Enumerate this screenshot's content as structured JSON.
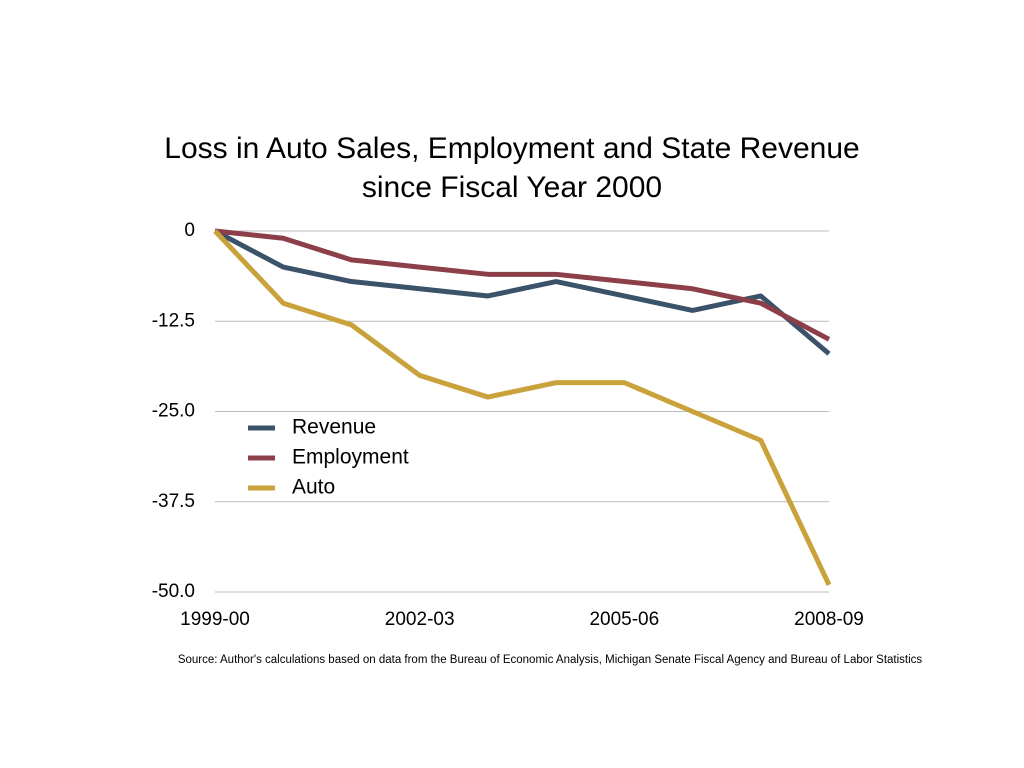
{
  "chart_data": {
    "type": "line",
    "title": [
      "Loss in Auto Sales, Employment and State Revenue",
      "since Fiscal Year 2000"
    ],
    "categories": [
      "1999-00",
      null,
      null,
      "2002-03",
      null,
      null,
      "2005-06",
      null,
      null,
      "2008-09"
    ],
    "series": [
      {
        "name": "Revenue",
        "color": "#3b5369",
        "values": [
          0,
          -5,
          -7,
          -8,
          -9,
          -7,
          -9,
          -11,
          -9,
          -17
        ]
      },
      {
        "name": "Employment",
        "color": "#8c3f48",
        "values": [
          0,
          -1,
          -4,
          -5,
          -6,
          -6,
          -7,
          -8,
          -10,
          -15
        ]
      },
      {
        "name": "Auto",
        "color": "#c9a23c",
        "values": [
          0,
          -10,
          -13,
          -20,
          -23,
          -21,
          -21,
          -25,
          -29,
          -49
        ]
      }
    ],
    "ylim": [
      -50,
      0
    ],
    "yticks": [
      0,
      -12.5,
      {
        "value": -25,
        "label": "-25.0"
      },
      -37.5,
      {
        "value": -50,
        "label": "-50.0"
      }
    ],
    "grid": true,
    "note": "Source: Author's calculations based on data from the Bureau of Economic Analysis, Michigan Senate Fiscal Agency and Bureau of Labor Statistics"
  }
}
